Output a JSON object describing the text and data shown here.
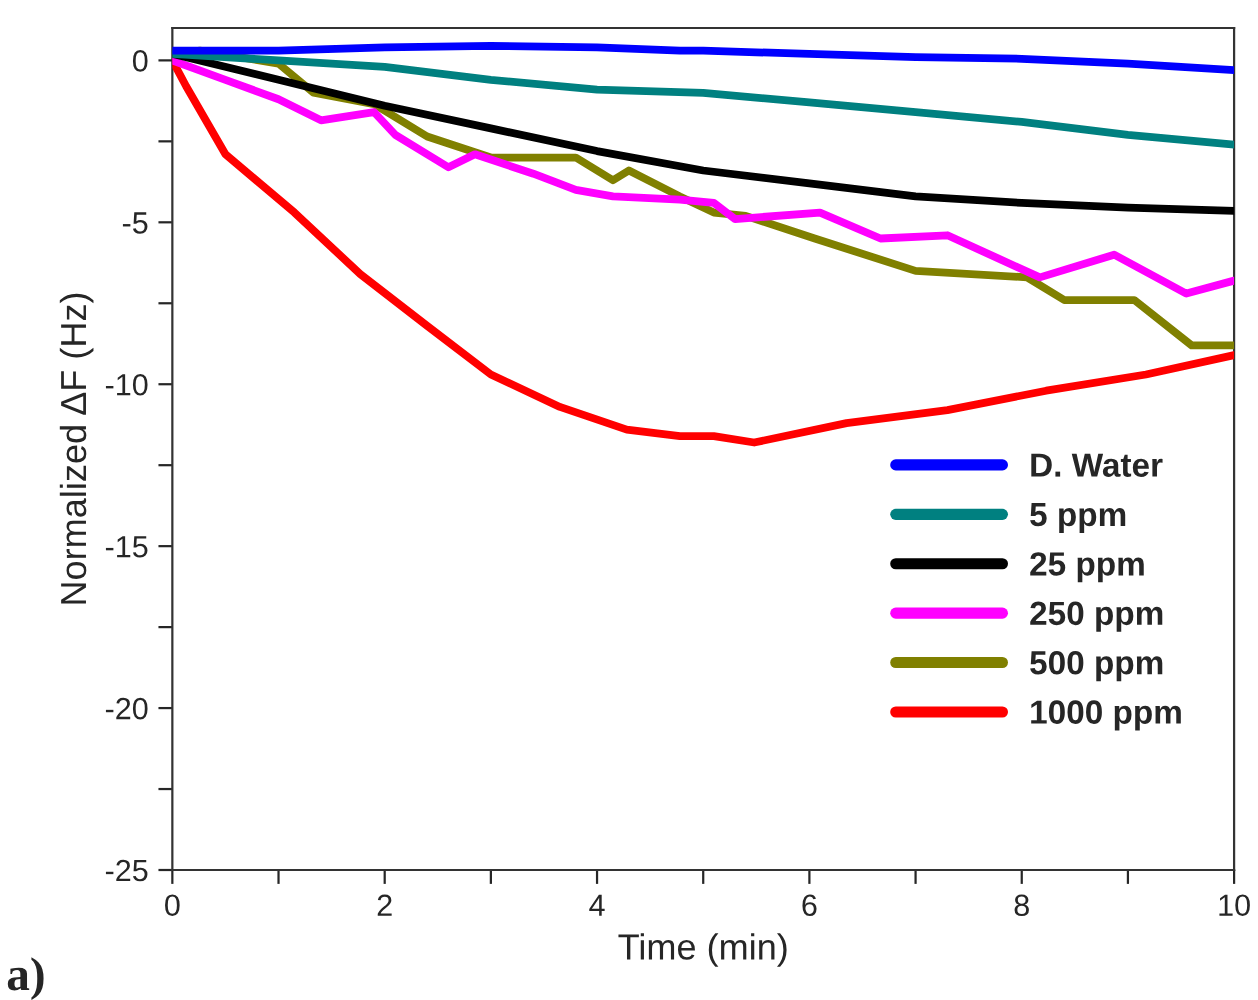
{
  "chart_data": {
    "type": "line",
    "xlabel": "Time (min)",
    "ylabel": "Normalized ΔF (Hz)",
    "xlim": [
      0,
      10
    ],
    "ylim": [
      -25,
      1
    ],
    "xticks": [
      0,
      {
        "value": 1,
        "label": null
      },
      2,
      {
        "value": 3,
        "label": null
      },
      4,
      {
        "value": 5,
        "label": null
      },
      6,
      {
        "value": 7,
        "label": null
      },
      8,
      {
        "value": 9,
        "label": null
      },
      10
    ],
    "yticks": [
      -25,
      {
        "value": -22.5,
        "label": null
      },
      -20,
      {
        "value": -17.5,
        "label": null
      },
      -15,
      {
        "value": -12.5,
        "label": null
      },
      -10,
      {
        "value": -7.5,
        "label": null
      },
      -5,
      {
        "value": -2.5,
        "label": null
      },
      0
    ],
    "grid": false,
    "legend": "lower right",
    "line_style": "solid",
    "marker": "none",
    "annotations": [
      "a)"
    ],
    "series": [
      {
        "name": "D. Water",
        "color": "#0000ff",
        "x": [
          0,
          0.5,
          1,
          2,
          3,
          4,
          4.78,
          5,
          6,
          7,
          8,
          9,
          10
        ],
        "values": [
          0.3,
          0.3,
          0.3,
          0.4,
          0.45,
          0.4,
          0.3,
          0.3,
          0.2,
          0.1,
          0.05,
          -0.1,
          -0.3
        ]
      },
      {
        "name": "5 ppm",
        "color": "#008080",
        "x": [
          0,
          1,
          2,
          3,
          4,
          5,
          6,
          7,
          8,
          9,
          10
        ],
        "values": [
          0.2,
          0.0,
          -0.2,
          -0.6,
          -0.9,
          -1.0,
          -1.3,
          -1.6,
          -1.9,
          -2.3,
          -2.6
        ]
      },
      {
        "name": "25 ppm",
        "color": "#000000",
        "x": [
          0,
          1,
          2,
          3,
          4,
          5,
          6,
          7,
          8,
          9,
          10
        ],
        "values": [
          0.2,
          -0.6,
          -1.4,
          -2.1,
          -2.8,
          -3.4,
          -3.8,
          -4.2,
          -4.4,
          -4.55,
          -4.65
        ]
      },
      {
        "name": "250 ppm",
        "color": "#ff00ff",
        "x": [
          0,
          0.5,
          1.0,
          1.4,
          1.9,
          2.1,
          2.6,
          2.85,
          3.4,
          3.8,
          4.15,
          4.78,
          5.1,
          5.3,
          6.1,
          6.67,
          7.3,
          8.17,
          8.87,
          9.55,
          10
        ],
        "values": [
          0,
          -0.6,
          -1.2,
          -1.85,
          -1.6,
          -2.3,
          -3.3,
          -2.9,
          -3.5,
          -4.0,
          -4.2,
          -4.3,
          -4.4,
          -4.9,
          -4.7,
          -5.5,
          -5.4,
          -6.7,
          -6.0,
          -7.2,
          -6.8
        ]
      },
      {
        "name": "500 ppm",
        "color": "#808000",
        "x": [
          0,
          0.26,
          1.0,
          1.33,
          1.9,
          2.4,
          3.0,
          3.8,
          4.15,
          4.3,
          4.78,
          5.1,
          5.4,
          6.05,
          7.0,
          8.05,
          8.4,
          9.06,
          9.6,
          10
        ],
        "values": [
          0.2,
          0.3,
          -0.1,
          -1.0,
          -1.35,
          -2.35,
          -3.0,
          -3.0,
          -3.7,
          -3.4,
          -4.2,
          -4.7,
          -4.8,
          -5.5,
          -6.5,
          -6.7,
          -7.4,
          -7.4,
          -8.8,
          -8.8
        ]
      },
      {
        "name": "1000 ppm",
        "color": "#ff0000",
        "x": [
          0,
          0.13,
          0.5,
          1.15,
          1.77,
          2.4,
          3.0,
          3.65,
          4.28,
          4.78,
          5.1,
          5.48,
          6.35,
          7.3,
          8.23,
          9.17,
          10
        ],
        "values": [
          0.0,
          -0.8,
          -2.9,
          -4.7,
          -6.6,
          -8.2,
          -9.7,
          -10.7,
          -11.4,
          -11.6,
          -11.6,
          -11.8,
          -11.2,
          -10.8,
          -10.2,
          -9.7,
          -9.1
        ]
      }
    ]
  }
}
